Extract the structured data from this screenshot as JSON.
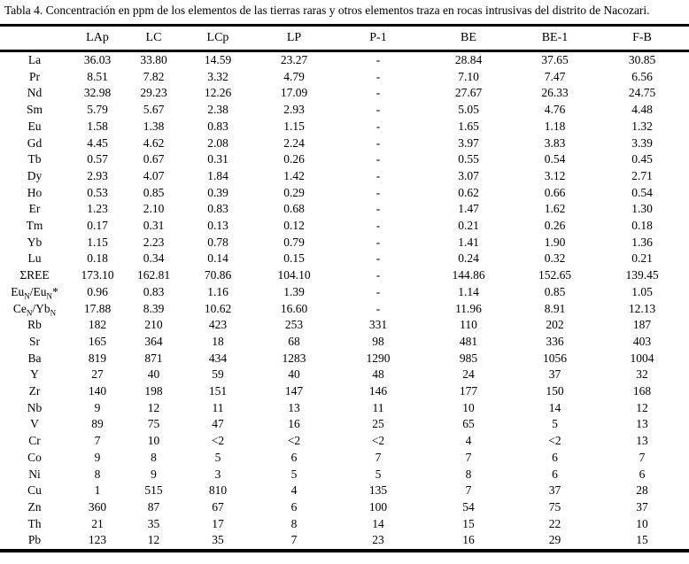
{
  "title": "Tabla 4. Concentración en ppm de los elementos de las tierras raras y otros elementos traza en rocas intrusivas del distrito de Nacozari.",
  "table": {
    "columns": [
      "",
      "LAp",
      "LC",
      "LCp",
      "LP",
      "P-1",
      "BE",
      "BE-1",
      "F-B"
    ],
    "rows": [
      {
        "label": "La",
        "values": [
          "36.03",
          "33.80",
          "14.59",
          "23.27",
          "-",
          "28.84",
          "37.65",
          "30.85"
        ]
      },
      {
        "label": "Pr",
        "values": [
          "8.51",
          "7.82",
          "3.32",
          "4.79",
          "-",
          "7.10",
          "7.47",
          "6.56"
        ]
      },
      {
        "label": "Nd",
        "values": [
          "32.98",
          "29.23",
          "12.26",
          "17.09",
          "-",
          "27.67",
          "26.33",
          "24.75"
        ]
      },
      {
        "label": "Sm",
        "values": [
          "5.79",
          "5.67",
          "2.38",
          "2.93",
          "-",
          "5.05",
          "4.76",
          "4.48"
        ]
      },
      {
        "label": "Eu",
        "values": [
          "1.58",
          "1.38",
          "0.83",
          "1.15",
          "-",
          "1.65",
          "1.18",
          "1.32"
        ]
      },
      {
        "label": "Gd",
        "values": [
          "4.45",
          "4.62",
          "2.08",
          "2.24",
          "-",
          "3.97",
          "3.83",
          "3.39"
        ]
      },
      {
        "label": "Tb",
        "values": [
          "0.57",
          "0.67",
          "0.31",
          "0.26",
          "-",
          "0.55",
          "0.54",
          "0.45"
        ]
      },
      {
        "label": "Dy",
        "values": [
          "2.93",
          "4.07",
          "1.84",
          "1.42",
          "-",
          "3.07",
          "3.12",
          "2.71"
        ]
      },
      {
        "label": "Ho",
        "values": [
          "0.53",
          "0.85",
          "0.39",
          "0.29",
          "-",
          "0.62",
          "0.66",
          "0.54"
        ]
      },
      {
        "label": "Er",
        "values": [
          "1.23",
          "2.10",
          "0.83",
          "0.68",
          "-",
          "1.47",
          "1.62",
          "1.30"
        ]
      },
      {
        "label": "Tm",
        "values": [
          "0.17",
          "0.31",
          "0.13",
          "0.12",
          "-",
          "0.21",
          "0.26",
          "0.18"
        ]
      },
      {
        "label": "Yb",
        "values": [
          "1.15",
          "2.23",
          "0.78",
          "0.79",
          "-",
          "1.41",
          "1.90",
          "1.36"
        ]
      },
      {
        "label": "Lu",
        "values": [
          "0.18",
          "0.34",
          "0.14",
          "0.15",
          "-",
          "0.24",
          "0.32",
          "0.21"
        ]
      },
      {
        "label": "ΣREE",
        "values": [
          "173.10",
          "162.81",
          "70.86",
          "104.10",
          "-",
          "144.86",
          "152.65",
          "139.45"
        ]
      },
      {
        "label": "Eu~N~/Eu~N~*",
        "values": [
          "0.96",
          "0.83",
          "1.16",
          "1.39",
          "-",
          "1.14",
          "0.85",
          "1.05"
        ]
      },
      {
        "label": "Ce~N~/Yb~N~",
        "values": [
          "17.88",
          "8.39",
          "10.62",
          "16.60",
          "-",
          "11.96",
          "8.91",
          "12.13"
        ]
      },
      {
        "label": "Rb",
        "values": [
          "182",
          "210",
          "423",
          "253",
          "331",
          "110",
          "202",
          "187"
        ]
      },
      {
        "label": "Sr",
        "values": [
          "165",
          "364",
          "18",
          "68",
          "98",
          "481",
          "336",
          "403"
        ]
      },
      {
        "label": "Ba",
        "values": [
          "819",
          "871",
          "434",
          "1283",
          "1290",
          "985",
          "1056",
          "1004"
        ]
      },
      {
        "label": "Y",
        "values": [
          "27",
          "40",
          "59",
          "40",
          "48",
          "24",
          "37",
          "32"
        ]
      },
      {
        "label": "Zr",
        "values": [
          "140",
          "198",
          "151",
          "147",
          "146",
          "177",
          "150",
          "168"
        ]
      },
      {
        "label": "Nb",
        "values": [
          "9",
          "12",
          "11",
          "13",
          "11",
          "10",
          "14",
          "12"
        ]
      },
      {
        "label": "V",
        "values": [
          "89",
          "75",
          "47",
          "16",
          "25",
          "65",
          "5",
          "13"
        ]
      },
      {
        "label": "Cr",
        "values": [
          "7",
          "10",
          "<2",
          "<2",
          "<2",
          "4",
          "<2",
          "13"
        ]
      },
      {
        "label": "Co",
        "values": [
          "9",
          "8",
          "5",
          "6",
          "7",
          "7",
          "6",
          "7"
        ]
      },
      {
        "label": "Ni",
        "values": [
          "8",
          "9",
          "3",
          "5",
          "5",
          "8",
          "6",
          "6"
        ]
      },
      {
        "label": "Cu",
        "values": [
          "1",
          "515",
          "810",
          "4",
          "135",
          "7",
          "37",
          "28"
        ]
      },
      {
        "label": "Zn",
        "values": [
          "360",
          "87",
          "67",
          "6",
          "100",
          "54",
          "75",
          "37"
        ]
      },
      {
        "label": "Th",
        "values": [
          "21",
          "35",
          "17",
          "8",
          "14",
          "15",
          "22",
          "10"
        ]
      },
      {
        "label": "Pb",
        "values": [
          "123",
          "12",
          "35",
          "7",
          "23",
          "16",
          "29",
          "15"
        ]
      }
    ]
  }
}
